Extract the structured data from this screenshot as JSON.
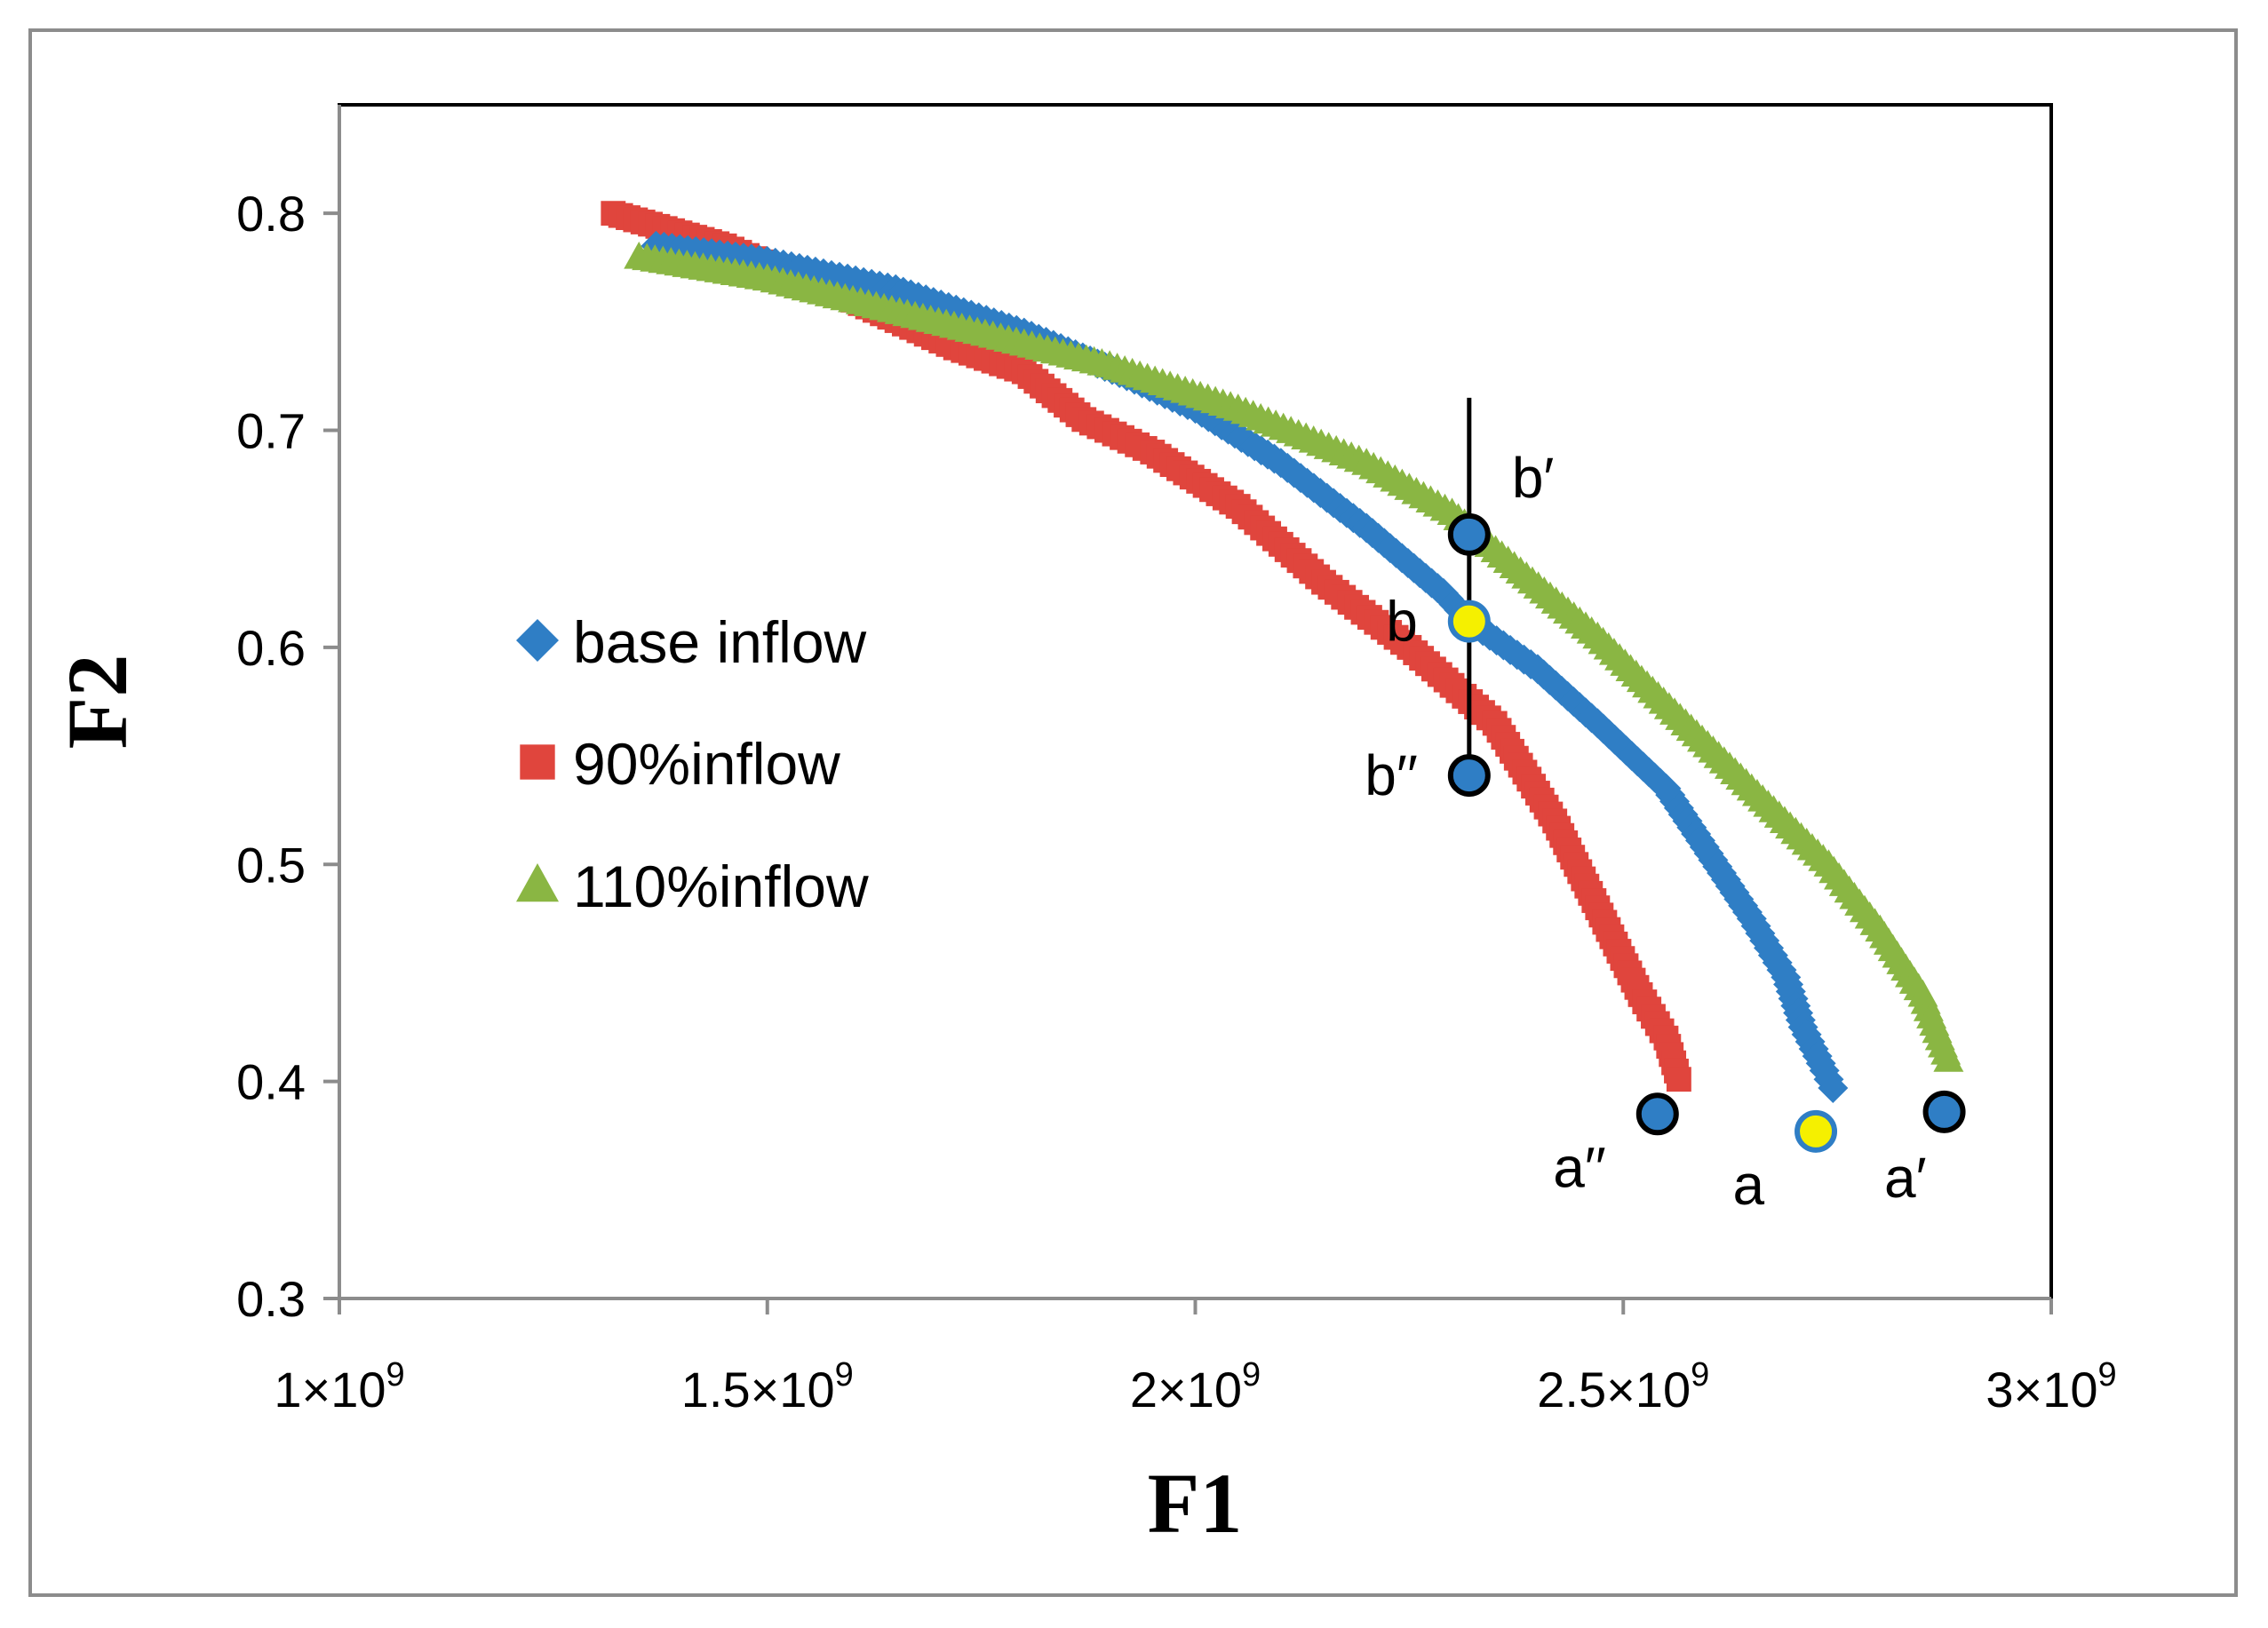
{
  "chart_data": {
    "type": "scatter",
    "xlabel": "F1",
    "ylabel": "F2",
    "xlim": [
      1000000000,
      3000000000
    ],
    "ylim": [
      0.3,
      0.85
    ],
    "x_ticks": [
      {
        "value": 1000000000,
        "mantissa": "1×10",
        "exp": "9"
      },
      {
        "value": 1500000000,
        "mantissa": "1.5×10",
        "exp": "9"
      },
      {
        "value": 2000000000,
        "mantissa": "2×10",
        "exp": "9"
      },
      {
        "value": 2500000000,
        "mantissa": "2.5×10",
        "exp": "9"
      },
      {
        "value": 3000000000,
        "mantissa": "3×10",
        "exp": "9"
      }
    ],
    "y_ticks": [
      {
        "value": 0.3,
        "label": "0.3"
      },
      {
        "value": 0.4,
        "label": "0.4"
      },
      {
        "value": 0.5,
        "label": "0.5"
      },
      {
        "value": 0.6,
        "label": "0.6"
      },
      {
        "value": 0.7,
        "label": "0.7"
      },
      {
        "value": 0.8,
        "label": "0.8"
      }
    ],
    "legend_position": "left-center",
    "series": [
      {
        "name": "base inflow",
        "color": "#2f7ec5",
        "marker": "diamond",
        "anchors": [
          [
            1370000000.0,
            0.785
          ],
          [
            1500000000.0,
            0.778
          ],
          [
            1650000000.0,
            0.765
          ],
          [
            1800000000.0,
            0.745
          ],
          [
            1920000000.0,
            0.725
          ],
          [
            2000000000.0,
            0.71
          ],
          [
            2100000000.0,
            0.685
          ],
          [
            2200000000.0,
            0.655
          ],
          [
            2290000000.0,
            0.625
          ],
          [
            2320000000.0,
            0.612
          ],
          [
            2400000000.0,
            0.59
          ],
          [
            2470000000.0,
            0.565
          ],
          [
            2550000000.0,
            0.535
          ],
          [
            2600000000.0,
            0.505
          ],
          [
            2650000000.0,
            0.475
          ],
          [
            2690000000.0,
            0.448
          ],
          [
            2710000000.0,
            0.425
          ],
          [
            2735000000.0,
            0.405
          ],
          [
            2745000000.0,
            0.397
          ]
        ]
      },
      {
        "name": "90%inflow",
        "color": "#e0453d",
        "marker": "square",
        "anchors": [
          [
            1320000000.0,
            0.8
          ],
          [
            1450000000.0,
            0.785
          ],
          [
            1600000000.0,
            0.76
          ],
          [
            1720000000.0,
            0.738
          ],
          [
            1800000000.0,
            0.727
          ],
          [
            1870000000.0,
            0.705
          ],
          [
            1950000000.0,
            0.69
          ],
          [
            2050000000.0,
            0.665
          ],
          [
            2150000000.0,
            0.63
          ],
          [
            2250000000.0,
            0.6
          ],
          [
            2350000000.0,
            0.565
          ],
          [
            2420000000.0,
            0.52
          ],
          [
            2470000000.0,
            0.48
          ],
          [
            2520000000.0,
            0.44
          ],
          [
            2550000000.0,
            0.42
          ],
          [
            2565000000.0,
            0.401
          ]
        ]
      },
      {
        "name": "110%inflow",
        "color": "#8ab643",
        "marker": "triangle",
        "anchors": [
          [
            1350000000.0,
            0.78
          ],
          [
            1500000000.0,
            0.77
          ],
          [
            1700000000.0,
            0.75
          ],
          [
            1900000000.0,
            0.73
          ],
          [
            2050000000.0,
            0.71
          ],
          [
            2200000000.0,
            0.685
          ],
          [
            2300000000.0,
            0.662
          ],
          [
            2380000000.0,
            0.635
          ],
          [
            2470000000.0,
            0.605
          ],
          [
            2560000000.0,
            0.57
          ],
          [
            2650000000.0,
            0.535
          ],
          [
            2740000000.0,
            0.5
          ],
          [
            2800000000.0,
            0.47
          ],
          [
            2850000000.0,
            0.44
          ],
          [
            2880000000.0,
            0.41
          ]
        ]
      }
    ],
    "highlight_points": [
      {
        "label": "b′",
        "x": 2320000000,
        "y": 0.652,
        "fill": "#2f7ec5",
        "label_pos": "right-top"
      },
      {
        "label": "b",
        "x": 2320000000,
        "y": 0.612,
        "fill": "#f5f000",
        "label_pos": "left"
      },
      {
        "label": "b′′",
        "x": 2320000000,
        "y": 0.541,
        "fill": "#2f7ec5",
        "label_pos": "left"
      },
      {
        "label": "a′′",
        "x": 2540000000,
        "y": 0.385,
        "fill": "#2f7ec5",
        "label_pos": "below-left"
      },
      {
        "label": "a",
        "x": 2725000000,
        "y": 0.377,
        "fill": "#f5f000",
        "label_pos": "below-left"
      },
      {
        "label": "a′",
        "x": 2875000000,
        "y": 0.386,
        "fill": "#2f7ec5",
        "label_pos": "below"
      }
    ],
    "vertical_segment": {
      "x": 2320000000,
      "y_from": 0.715,
      "y_to": 0.541
    }
  }
}
